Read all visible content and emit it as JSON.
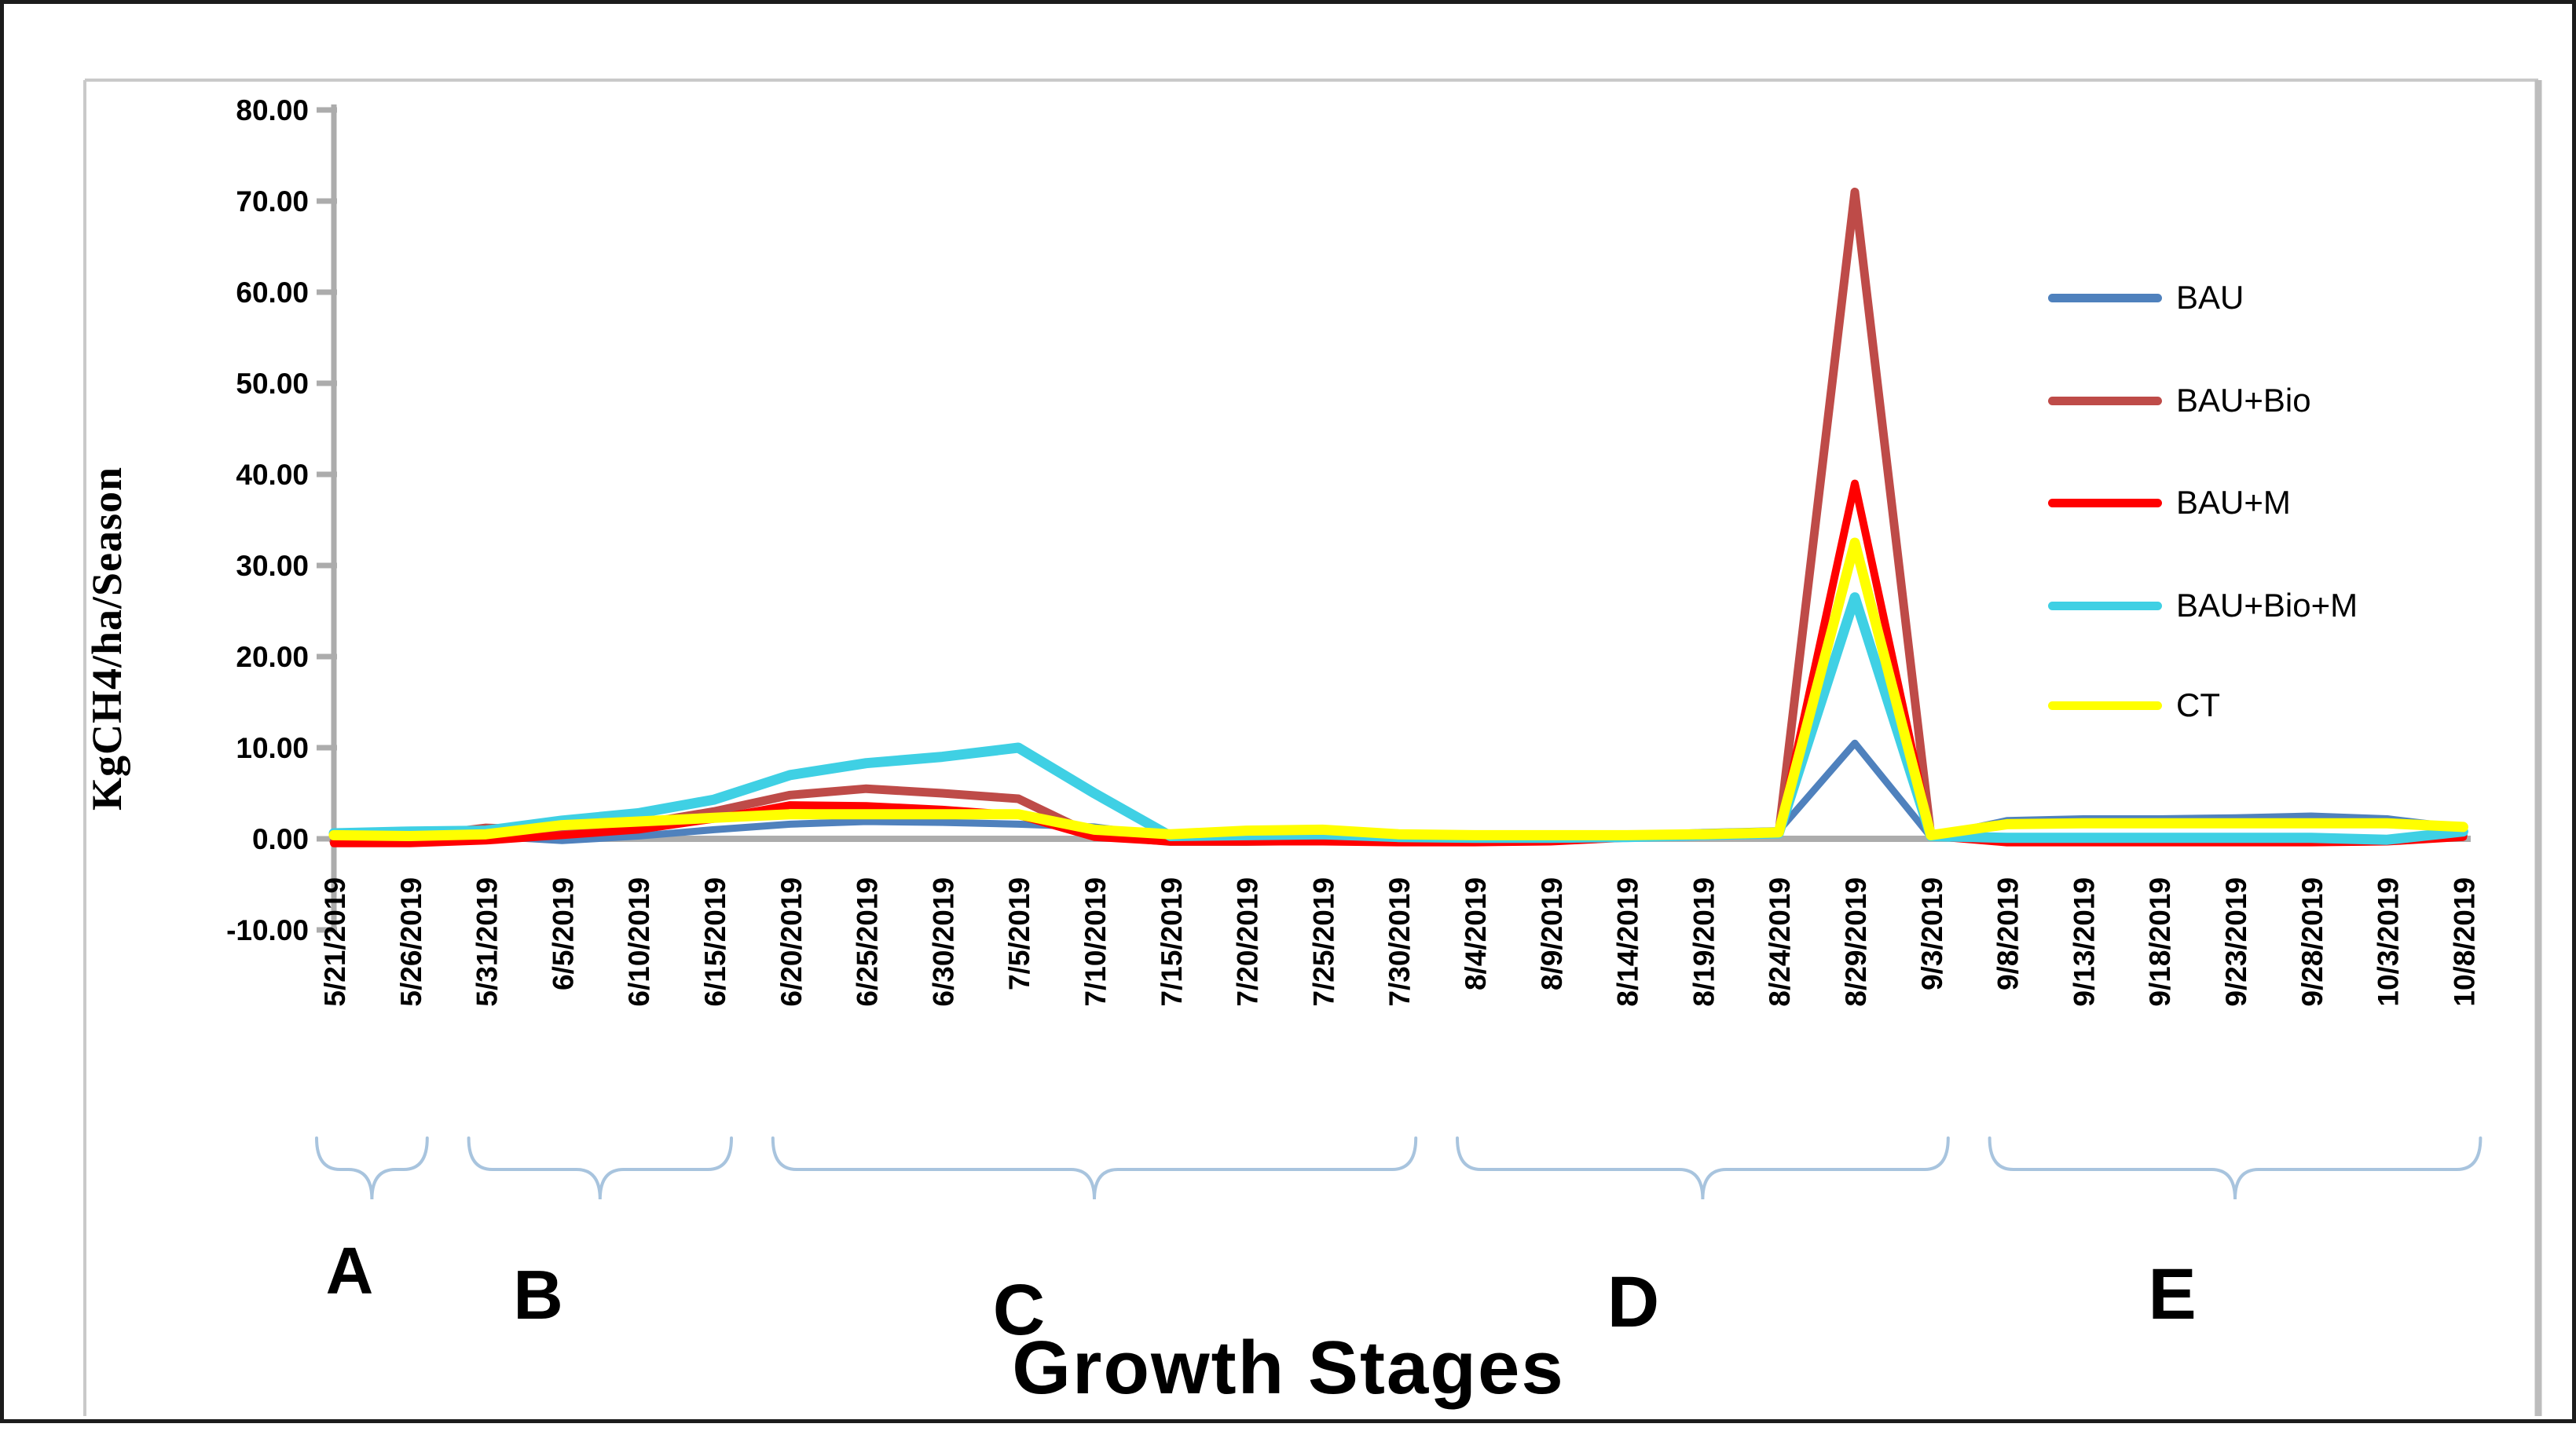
{
  "chart_data": {
    "type": "line",
    "title": "",
    "ylabel": "KgCH4/ha/Season",
    "xlabel": "Growth Stages",
    "ylim": [
      -10,
      80
    ],
    "grid": false,
    "legend_position": "right",
    "axis_color": "#ACACAC",
    "brace_color": "#A8C4DE",
    "y_ticks": [
      "80.00",
      "70.00",
      "60.00",
      "50.00",
      "40.00",
      "30.00",
      "20.00",
      "10.00",
      "0.00",
      "-10.00"
    ],
    "y_tick_values": [
      80,
      70,
      60,
      50,
      40,
      30,
      20,
      10,
      0,
      -10
    ],
    "categories": [
      "5/21/2019",
      "5/26/2019",
      "5/31/2019",
      "6/5/2019",
      "6/10/2019",
      "6/15/2019",
      "6/20/2019",
      "6/25/2019",
      "6/30/2019",
      "7/5/2019",
      "7/10/2019",
      "7/15/2019",
      "7/20/2019",
      "7/25/2019",
      "7/30/2019",
      "8/4/2019",
      "8/9/2019",
      "8/14/2019",
      "8/19/2019",
      "8/24/2019",
      "8/29/2019",
      "9/3/2019",
      "9/8/2019",
      "9/13/2019",
      "9/18/2019",
      "9/23/2019",
      "9/28/2019",
      "10/3/2019",
      "10/8/2019"
    ],
    "series": [
      {
        "name": "BAU",
        "color": "#4F81BD",
        "values": [
          0.0,
          0.1,
          0.3,
          -0.2,
          0.3,
          1.0,
          1.6,
          1.9,
          1.8,
          1.6,
          1.3,
          0.2,
          0.1,
          0.2,
          0.1,
          0.1,
          0.1,
          0.4,
          0.7,
          0.9,
          10.5,
          0.2,
          2.0,
          2.2,
          2.2,
          2.3,
          2.5,
          2.2,
          1.2
        ]
      },
      {
        "name": "BAU+Bio",
        "color": "#BE4B48",
        "values": [
          -0.3,
          0.2,
          1.2,
          0.9,
          1.6,
          3.0,
          4.8,
          5.5,
          5.0,
          4.4,
          0.4,
          -0.3,
          -0.3,
          -0.2,
          -0.3,
          -0.3,
          -0.2,
          0.2,
          0.4,
          0.6,
          71.0,
          0.4,
          -0.2,
          -0.2,
          -0.2,
          -0.2,
          -0.2,
          -0.2,
          0.4
        ]
      },
      {
        "name": "BAU+M",
        "color": "#FF0000",
        "values": [
          -0.5,
          -0.5,
          -0.2,
          0.4,
          1.0,
          2.2,
          3.7,
          3.6,
          3.2,
          2.6,
          0.2,
          -0.3,
          -0.3,
          -0.3,
          -0.4,
          -0.4,
          -0.3,
          0.1,
          0.3,
          0.5,
          39.0,
          0.3,
          -0.4,
          -0.4,
          -0.4,
          -0.4,
          -0.4,
          -0.3,
          0.2
        ]
      },
      {
        "name": "BAU+Bio+M",
        "color": "#3FD0E4",
        "values": [
          0.6,
          0.8,
          0.9,
          2.0,
          2.8,
          4.3,
          7.0,
          8.3,
          9.0,
          10.0,
          5.0,
          0.3,
          0.4,
          0.5,
          0.2,
          0.1,
          0.1,
          0.2,
          0.4,
          0.6,
          26.5,
          0.3,
          0.1,
          0.1,
          0.1,
          0.1,
          0.1,
          -0.1,
          0.8
        ]
      },
      {
        "name": "CT",
        "color": "#FFFF00",
        "values": [
          0.4,
          0.3,
          0.5,
          1.5,
          1.9,
          2.3,
          2.7,
          2.7,
          2.7,
          2.7,
          1.0,
          0.5,
          0.9,
          1.0,
          0.5,
          0.4,
          0.4,
          0.4,
          0.5,
          0.7,
          32.5,
          0.4,
          1.6,
          1.7,
          1.7,
          1.7,
          1.7,
          1.7,
          1.3
        ]
      }
    ],
    "growth_stages": [
      {
        "label": "A",
        "from": "5/21/2019",
        "to": "5/26/2019"
      },
      {
        "label": "B",
        "from": "5/31/2019",
        "to": "6/15/2019"
      },
      {
        "label": "C",
        "from": "6/20/2019",
        "to": "7/30/2019"
      },
      {
        "label": "D",
        "from": "8/4/2019",
        "to": "9/3/2019"
      },
      {
        "label": "E",
        "from": "9/8/2019",
        "to": "10/8/2019"
      }
    ]
  }
}
